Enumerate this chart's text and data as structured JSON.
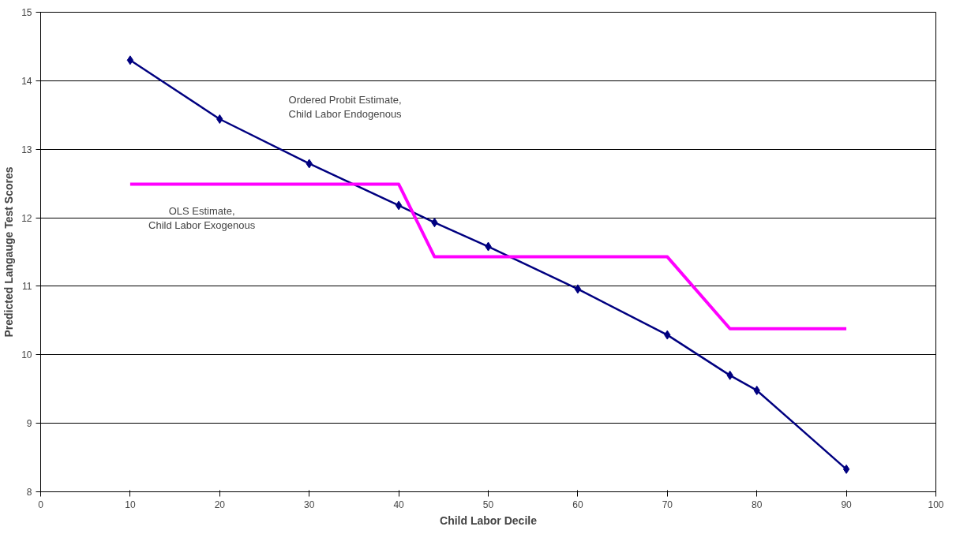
{
  "chart_data": {
    "type": "line",
    "xlabel": "Child Labor Decile",
    "ylabel": "Predicted Langauge Test Scores",
    "xlim": [
      0,
      100
    ],
    "xticks": [
      0,
      10,
      20,
      30,
      40,
      50,
      60,
      70,
      80,
      90,
      100
    ],
    "ylim": [
      8,
      15
    ],
    "yticks": [
      8,
      9,
      10,
      11,
      12,
      13,
      14,
      15
    ],
    "grid": "y",
    "series": [
      {
        "color": "#000080",
        "marker": "diamond",
        "x": [
          10,
          20,
          30,
          40,
          44,
          50,
          60,
          70,
          77,
          80,
          90
        ],
        "values": [
          14.3,
          13.44,
          12.79,
          12.18,
          11.93,
          11.58,
          10.96,
          10.29,
          9.7,
          9.48,
          8.33
        ]
      },
      {
        "color": "#ff00ff",
        "marker": "none",
        "x": [
          10,
          40,
          44,
          70,
          77,
          90
        ],
        "values": [
          12.49,
          12.49,
          11.43,
          11.43,
          10.38,
          10.38
        ]
      }
    ],
    "annotations": [
      "Ordered Probit Estimate,\nChild Labor Endogenous",
      "OLS Estimate,\nChild Labor Exogenous"
    ]
  }
}
